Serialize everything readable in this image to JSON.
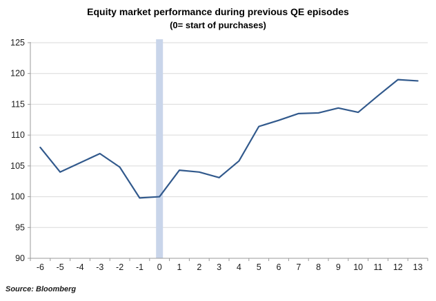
{
  "chart_data": {
    "type": "line",
    "title": "Equity market performance during previous QE episodes",
    "subtitle": "(0= start of purchases)",
    "x": [
      -6,
      -5,
      -4,
      -3,
      -2,
      -1,
      0,
      1,
      2,
      3,
      4,
      5,
      6,
      7,
      8,
      9,
      10,
      11,
      12,
      13
    ],
    "values": [
      108,
      104,
      105.5,
      107,
      104.8,
      99.8,
      100,
      104.3,
      104,
      103.1,
      105.8,
      111.4,
      112.4,
      113.5,
      113.6,
      114.4,
      113.7,
      116.4,
      119,
      118.8
    ],
    "ylim": [
      90,
      125
    ],
    "y_ticks": [
      90,
      95,
      100,
      105,
      110,
      115,
      120,
      125
    ],
    "grid": true,
    "legend": "none",
    "line_color": "#31598c",
    "grid_color": "#d9d9d9",
    "axis_color": "#9a9a9a",
    "band": {
      "x": 0,
      "color": "#c9d5ea"
    },
    "source": "Source: Bloomberg"
  }
}
